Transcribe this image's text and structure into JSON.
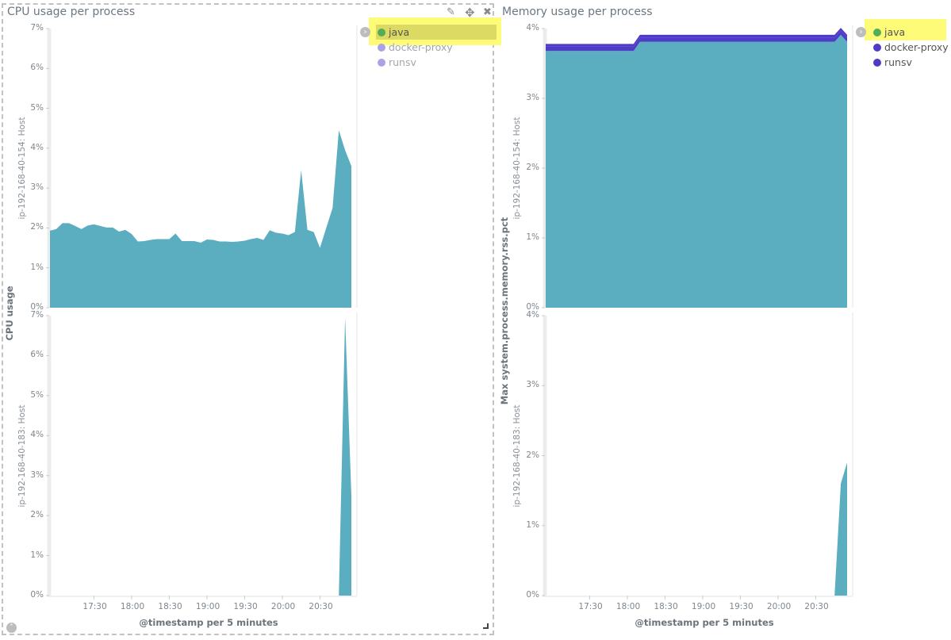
{
  "colors": {
    "fill": "#5aaec0",
    "stack_top": "#4f3cc6",
    "legend_java": "#4fae57",
    "legend_faded": "#a9a3e6",
    "legend_active": "#4f3cc6",
    "highlight": "#fdfb78"
  },
  "panels": [
    {
      "title": "CPU usage per process",
      "icons": [
        "pencil-icon",
        "move-icon",
        "close-icon"
      ]
    },
    {
      "title": "Memory usage per process"
    }
  ],
  "chart_data": [
    {
      "type": "area",
      "title": "CPU usage per process",
      "ylabel": "CPU usage",
      "xlabel": "@timestamp per 5 minutes",
      "ylim": [
        0,
        7
      ],
      "yticks": [
        "0%",
        "1%",
        "2%",
        "3%",
        "4%",
        "5%",
        "6%",
        "7%"
      ],
      "xticks": [
        "17:30",
        "18:00",
        "18:30",
        "19:00",
        "19:30",
        "20:00",
        "20:30"
      ],
      "grid": false,
      "legend_placement": "right",
      "legend": [
        {
          "name": "java",
          "color": "#4fae57",
          "highlighted": true
        },
        {
          "name": "docker-proxy",
          "color": "#a9a3e6",
          "highlighted": false
        },
        {
          "name": "runsv",
          "color": "#a9a3e6",
          "highlighted": false
        }
      ],
      "x": [
        "16:55",
        "17:00",
        "17:05",
        "17:10",
        "17:15",
        "17:20",
        "17:25",
        "17:30",
        "17:35",
        "17:40",
        "17:45",
        "17:50",
        "17:55",
        "18:00",
        "18:05",
        "18:10",
        "18:15",
        "18:20",
        "18:25",
        "18:30",
        "18:35",
        "18:40",
        "18:45",
        "18:50",
        "18:55",
        "19:00",
        "19:05",
        "19:10",
        "19:15",
        "19:20",
        "19:25",
        "19:30",
        "19:35",
        "19:40",
        "19:45",
        "19:50",
        "19:55",
        "20:00",
        "20:05",
        "20:10",
        "20:15",
        "20:20",
        "20:25",
        "20:30",
        "20:35",
        "20:40",
        "20:45",
        "20:50",
        "20:55"
      ],
      "rows": [
        {
          "label": "ip-192-168-40-154: Host",
          "series": [
            {
              "name": "java",
              "values": [
                1.93,
                1.97,
                2.12,
                2.12,
                2.05,
                1.97,
                2.06,
                2.09,
                2.05,
                2.01,
                2.01,
                1.91,
                1.95,
                1.85,
                1.66,
                1.67,
                1.7,
                1.72,
                1.72,
                1.72,
                1.86,
                1.67,
                1.67,
                1.67,
                1.63,
                1.71,
                1.7,
                1.66,
                1.66,
                1.65,
                1.66,
                1.68,
                1.72,
                1.75,
                1.7,
                1.94,
                1.88,
                1.86,
                1.82,
                1.9,
                3.45,
                1.95,
                1.9,
                1.5,
                2.0,
                2.5,
                4.45,
                3.95,
                3.55
              ]
            }
          ]
        },
        {
          "label": "ip-192-168-40-183: Host",
          "series": [
            {
              "name": "java",
              "x": [
                "20:45",
                "20:50",
                "20:55"
              ],
              "values": [
                0,
                6.95,
                2.5
              ]
            }
          ]
        }
      ]
    },
    {
      "type": "area",
      "title": "Memory usage per process",
      "ylabel": "Max system.process.memory.rss.pct",
      "xlabel": "@timestamp per 5 minutes",
      "ylim": [
        0,
        4
      ],
      "stacked": true,
      "yticks": [
        "0%",
        "1%",
        "2%",
        "3%",
        "4%"
      ],
      "xticks": [
        "17:30",
        "18:00",
        "18:30",
        "19:00",
        "19:30",
        "20:00",
        "20:30"
      ],
      "grid": false,
      "legend_placement": "right",
      "legend": [
        {
          "name": "java",
          "color": "#4fae57",
          "highlighted": true
        },
        {
          "name": "docker-proxy",
          "color": "#4f3cc6",
          "highlighted": false
        },
        {
          "name": "runsv",
          "color": "#4f3cc6",
          "highlighted": false
        }
      ],
      "x": [
        "16:55",
        "17:00",
        "17:05",
        "17:10",
        "17:15",
        "17:20",
        "17:25",
        "17:30",
        "17:35",
        "17:40",
        "17:45",
        "17:50",
        "17:55",
        "18:00",
        "18:05",
        "18:10",
        "18:15",
        "18:20",
        "18:25",
        "18:30",
        "18:35",
        "18:40",
        "18:45",
        "18:50",
        "18:55",
        "19:00",
        "19:05",
        "19:10",
        "19:15",
        "19:20",
        "19:25",
        "19:30",
        "19:35",
        "19:40",
        "19:45",
        "19:50",
        "19:55",
        "20:00",
        "20:05",
        "20:10",
        "20:15",
        "20:20",
        "20:25",
        "20:30",
        "20:35",
        "20:40",
        "20:45",
        "20:50",
        "20:55"
      ],
      "rows": [
        {
          "label": "ip-192-168-40-154: Host",
          "series": [
            {
              "name": "java",
              "values": [
                3.68,
                3.68,
                3.68,
                3.68,
                3.68,
                3.68,
                3.68,
                3.68,
                3.68,
                3.68,
                3.68,
                3.68,
                3.68,
                3.68,
                3.68,
                3.81,
                3.81,
                3.81,
                3.81,
                3.81,
                3.81,
                3.81,
                3.81,
                3.81,
                3.81,
                3.81,
                3.81,
                3.81,
                3.81,
                3.81,
                3.81,
                3.81,
                3.81,
                3.81,
                3.81,
                3.81,
                3.81,
                3.81,
                3.81,
                3.81,
                3.81,
                3.81,
                3.81,
                3.81,
                3.81,
                3.81,
                3.81,
                3.91,
                3.81
              ]
            },
            {
              "name": "docker-proxy",
              "values": [
                0.06,
                0.06,
                0.06,
                0.06,
                0.06,
                0.06,
                0.06,
                0.06,
                0.06,
                0.06,
                0.06,
                0.06,
                0.06,
                0.06,
                0.06,
                0.06,
                0.06,
                0.06,
                0.06,
                0.06,
                0.06,
                0.06,
                0.06,
                0.06,
                0.06,
                0.06,
                0.06,
                0.06,
                0.06,
                0.06,
                0.06,
                0.06,
                0.06,
                0.06,
                0.06,
                0.06,
                0.06,
                0.06,
                0.06,
                0.06,
                0.06,
                0.06,
                0.06,
                0.06,
                0.06,
                0.06,
                0.06,
                0.06,
                0.06
              ]
            },
            {
              "name": "runsv",
              "values": [
                0.04,
                0.04,
                0.04,
                0.04,
                0.04,
                0.04,
                0.04,
                0.04,
                0.04,
                0.04,
                0.04,
                0.04,
                0.04,
                0.04,
                0.04,
                0.04,
                0.04,
                0.04,
                0.04,
                0.04,
                0.04,
                0.04,
                0.04,
                0.04,
                0.04,
                0.04,
                0.04,
                0.04,
                0.04,
                0.04,
                0.04,
                0.04,
                0.04,
                0.04,
                0.04,
                0.04,
                0.04,
                0.04,
                0.04,
                0.04,
                0.04,
                0.04,
                0.04,
                0.04,
                0.04,
                0.04,
                0.04,
                0.04,
                0.04
              ]
            }
          ]
        },
        {
          "label": "ip-192-168-40-183: Host",
          "series": [
            {
              "name": "java",
              "x": [
                "20:45",
                "20:50",
                "20:55"
              ],
              "values": [
                0,
                1.6,
                1.9
              ]
            }
          ]
        }
      ]
    }
  ]
}
